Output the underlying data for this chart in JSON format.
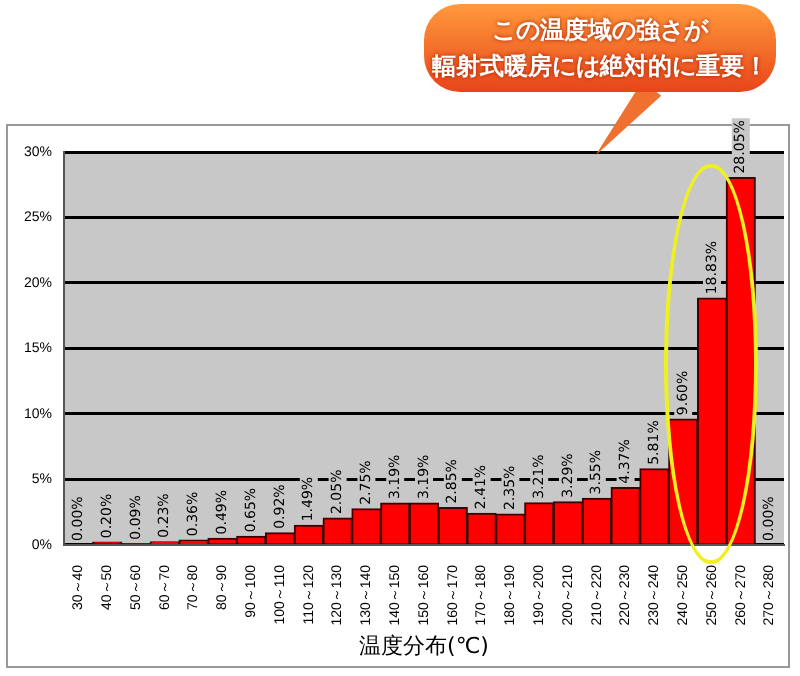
{
  "chart_data": {
    "type": "bar",
    "annotations": [
      "この温度域の強さが",
      "輻射式暖房には絶対的に重要！"
    ],
    "xlabel": "温度分布(℃)",
    "categories": [
      "30～40",
      "40～50",
      "50～60",
      "60～70",
      "70～80",
      "80～90",
      "90～100",
      "100～110",
      "110～120",
      "120～130",
      "130～140",
      "140～150",
      "150～160",
      "160～170",
      "170～180",
      "180～190",
      "190～200",
      "200～210",
      "210～220",
      "220～230",
      "230～240",
      "240～250",
      "250～260",
      "260～270",
      "270～280"
    ],
    "values": [
      0.0,
      0.2,
      0.09,
      0.23,
      0.36,
      0.49,
      0.65,
      0.92,
      1.49,
      2.05,
      2.75,
      3.19,
      3.19,
      2.85,
      2.41,
      2.35,
      3.21,
      3.29,
      3.55,
      4.37,
      5.81,
      9.6,
      18.83,
      28.05,
      0.0
    ],
    "value_labels": [
      "0.00%",
      "0.20%",
      "0.09%",
      "0.23%",
      "0.36%",
      "0.49%",
      "0.65%",
      "0.92%",
      "1.49%",
      "2.05%",
      "2.75%",
      "3.19%",
      "3.19%",
      "2.85%",
      "2.41%",
      "2.35%",
      "3.21%",
      "3.29%",
      "3.55%",
      "4.37%",
      "5.81%",
      "9.60%",
      "18.83%",
      "28.05%",
      "0.00%"
    ],
    "color": "#ff0000",
    "ylim": [
      0,
      30
    ],
    "yticks": [
      {
        "value": 0,
        "label": "0%"
      },
      {
        "value": 5,
        "label": "5%"
      },
      {
        "value": 10,
        "label": "10%"
      },
      {
        "value": 15,
        "label": "15%"
      },
      {
        "value": 20,
        "label": "20%"
      },
      {
        "value": 25,
        "label": "25%"
      },
      {
        "value": 30,
        "label": "30%"
      }
    ],
    "grid": "y",
    "legend": false
  }
}
